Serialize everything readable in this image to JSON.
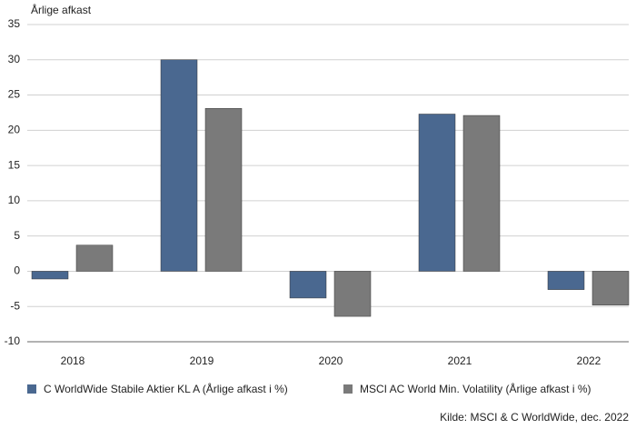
{
  "chart_data": {
    "type": "bar",
    "title": "Årlige afkast",
    "categories": [
      "2018",
      "2019",
      "2020",
      "2021",
      "2022"
    ],
    "series": [
      {
        "name": "C WorldWide Stabile Aktier KL A (Årlige afkast i %)",
        "color": "#4a6890",
        "values": [
          -1.1,
          30.0,
          -3.8,
          22.3,
          -2.6
        ]
      },
      {
        "name": "MSCI AC World Min. Volatility (Årlige afkast i %)",
        "color": "#7a7a7a",
        "values": [
          3.7,
          23.1,
          -6.4,
          22.1,
          -4.8
        ]
      }
    ],
    "ylim": [
      -10,
      35
    ],
    "yticks": [
      -10,
      -5,
      0,
      5,
      10,
      15,
      20,
      25,
      30,
      35
    ],
    "grid": true,
    "source": "Kilde: MSCI & C WorldWide, dec. 2022"
  }
}
